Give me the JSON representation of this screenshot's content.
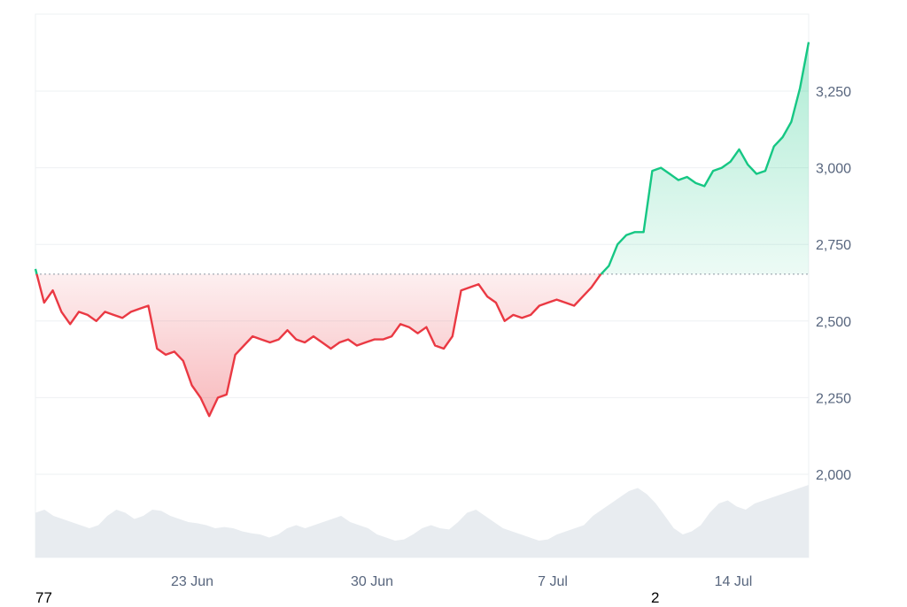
{
  "chart_data": {
    "type": "area",
    "title": "",
    "xlabel": "",
    "ylabel": "",
    "x_ticks": [
      "23 Jun",
      "30 Jun",
      "7 Jul",
      "14 Jul"
    ],
    "y_ticks": [
      "3,250",
      "3,000",
      "2,750",
      "2,500",
      "2,250",
      "2,000"
    ],
    "ylim": [
      2000,
      3480
    ],
    "baseline": 2653,
    "grid": true,
    "colors": {
      "above": "#16c784",
      "below": "#ea3943",
      "volume": "#e8ecf0",
      "grid": "#eef0f3"
    },
    "series": [
      {
        "x": [
          "17 Jun",
          "17 Jun",
          "18 Jun",
          "18 Jun",
          "18 Jun",
          "18 Jun",
          "19 Jun",
          "19 Jun",
          "19 Jun",
          "20 Jun",
          "20 Jun",
          "20 Jun",
          "21 Jun",
          "21 Jun",
          "21 Jun",
          "22 Jun",
          "22 Jun",
          "22 Jun",
          "22 Jun",
          "23 Jun",
          "23 Jun",
          "23 Jun",
          "24 Jun",
          "24 Jun",
          "24 Jun",
          "25 Jun",
          "25 Jun",
          "25 Jun",
          "26 Jun",
          "26 Jun",
          "26 Jun",
          "27 Jun",
          "27 Jun",
          "28 Jun",
          "28 Jun",
          "29 Jun",
          "29 Jun",
          "29 Jun",
          "30 Jun",
          "30 Jun",
          "1 Jul",
          "1 Jul",
          "1 Jul",
          "2 Jul",
          "2 Jul",
          "2 Jul",
          "3 Jul",
          "3 Jul",
          "3 Jul",
          "4 Jul",
          "4 Jul",
          "4 Jul",
          "5 Jul",
          "5 Jul",
          "5 Jul",
          "6 Jul",
          "6 Jul",
          "6 Jul",
          "7 Jul",
          "7 Jul",
          "7 Jul",
          "8 Jul",
          "8 Jul",
          "8 Jul",
          "9 Jul",
          "9 Jul",
          "9 Jul",
          "9 Jul",
          "10 Jul",
          "10 Jul",
          "10 Jul",
          "11 Jul",
          "11 Jul",
          "11 Jul",
          "12 Jul",
          "12 Jul",
          "12 Jul",
          "13 Jul",
          "13 Jul",
          "13 Jul",
          "14 Jul",
          "14 Jul",
          "14 Jul",
          "15 Jul",
          "15 Jul",
          "15 Jul",
          "16 Jul",
          "16 Jul",
          "16 Jul",
          "17 Jul"
        ],
        "values": [
          2670,
          2560,
          2600,
          2530,
          2490,
          2530,
          2520,
          2500,
          2530,
          2520,
          2510,
          2530,
          2540,
          2550,
          2410,
          2390,
          2400,
          2370,
          2290,
          2250,
          2190,
          2250,
          2260,
          2390,
          2420,
          2450,
          2440,
          2430,
          2440,
          2470,
          2440,
          2430,
          2450,
          2430,
          2410,
          2430,
          2440,
          2420,
          2430,
          2440,
          2440,
          2450,
          2490,
          2480,
          2460,
          2480,
          2420,
          2410,
          2450,
          2600,
          2610,
          2620,
          2580,
          2560,
          2500,
          2520,
          2510,
          2520,
          2550,
          2560,
          2570,
          2560,
          2550,
          2580,
          2610,
          2650,
          2680,
          2750,
          2780,
          2790,
          2790,
          2990,
          3000,
          2980,
          2960,
          2970,
          2950,
          2940,
          2990,
          3000,
          3020,
          3060,
          3010,
          2980,
          2990,
          3070,
          3100,
          3150,
          3260,
          3410
        ]
      }
    ],
    "volume": [
      0.55,
      0.6,
      0.5,
      0.45,
      0.4,
      0.35,
      0.3,
      0.35,
      0.5,
      0.6,
      0.55,
      0.45,
      0.5,
      0.6,
      0.58,
      0.5,
      0.45,
      0.4,
      0.38,
      0.35,
      0.3,
      0.32,
      0.3,
      0.25,
      0.22,
      0.2,
      0.15,
      0.2,
      0.3,
      0.35,
      0.3,
      0.35,
      0.4,
      0.45,
      0.5,
      0.4,
      0.35,
      0.3,
      0.2,
      0.15,
      0.1,
      0.12,
      0.2,
      0.3,
      0.35,
      0.3,
      0.28,
      0.4,
      0.55,
      0.6,
      0.5,
      0.4,
      0.3,
      0.25,
      0.2,
      0.15,
      0.1,
      0.12,
      0.2,
      0.25,
      0.3,
      0.35,
      0.5,
      0.6,
      0.7,
      0.8,
      0.9,
      0.95,
      0.85,
      0.7,
      0.5,
      0.3,
      0.2,
      0.25,
      0.35,
      0.55,
      0.7,
      0.75,
      0.65,
      0.6,
      0.7,
      0.75,
      0.8,
      0.85,
      0.9,
      0.95,
      1.0
    ]
  },
  "footer": {
    "left": "77",
    "right": "2"
  }
}
